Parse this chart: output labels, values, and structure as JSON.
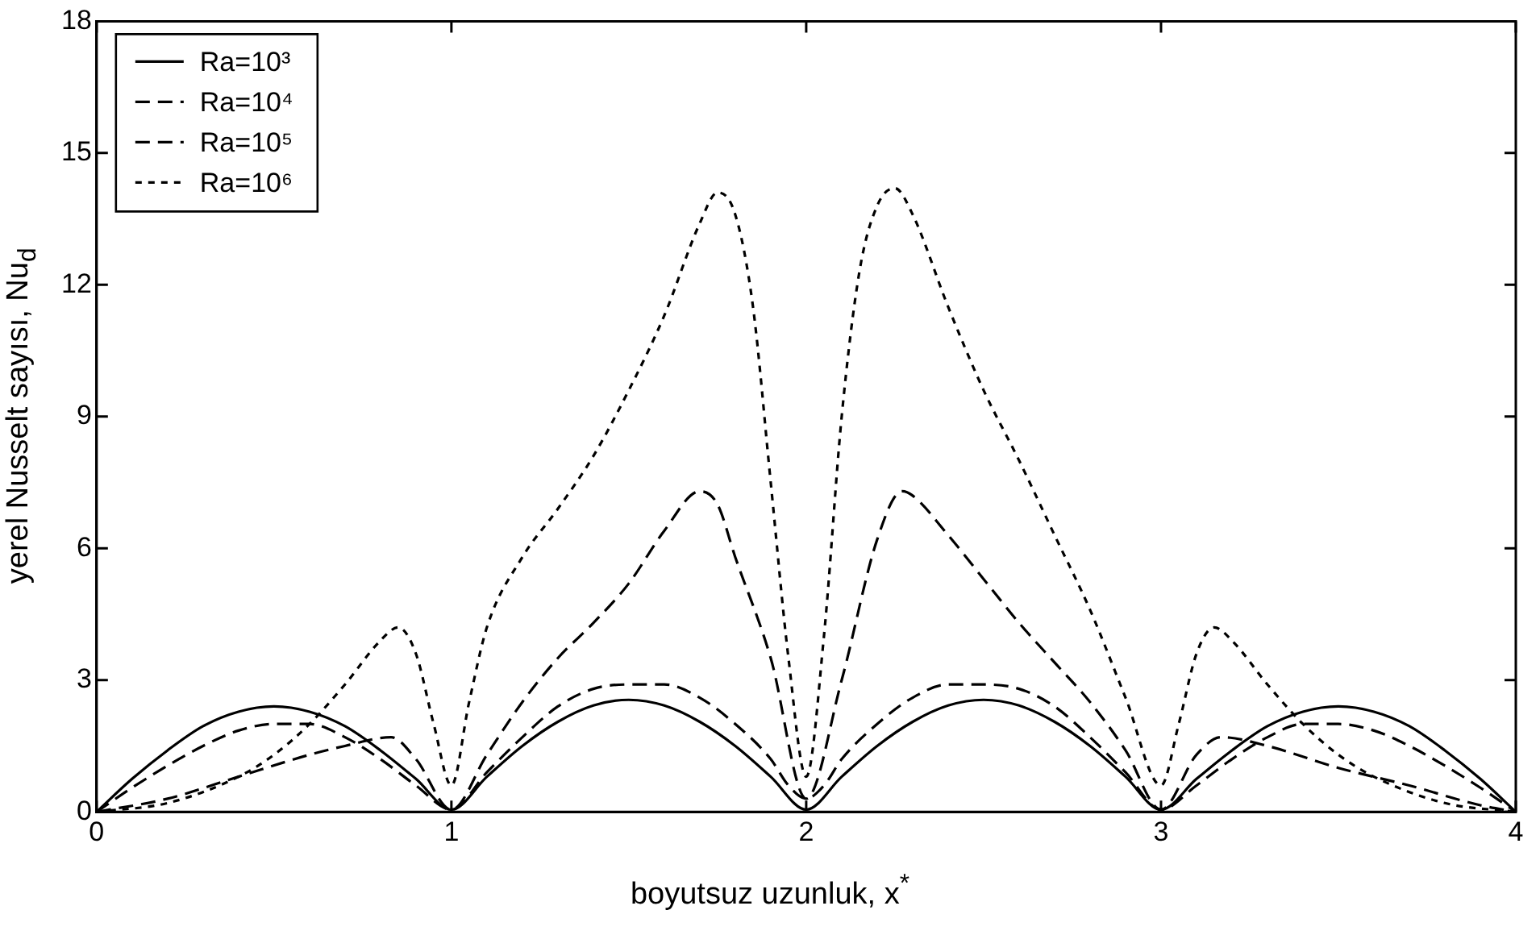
{
  "chart_data": {
    "type": "line",
    "xlabel": "boyutsuz uzunluk, x$^{*}$",
    "ylabel": "yerel Nusselt sayısı, Nu$_{d}$",
    "xlim": [
      0,
      4
    ],
    "xticks": [
      0,
      1,
      2,
      3,
      4
    ],
    "ylim": [
      0,
      18
    ],
    "yticks": [
      0,
      3,
      6,
      9,
      12,
      15,
      18
    ],
    "grid": false,
    "legend": "top left",
    "marker": "none",
    "series": [
      {
        "name": "Ra=10³",
        "color": "#000000",
        "line_style": "solid",
        "x": [
          0,
          0.1,
          0.2,
          0.3,
          0.4,
          0.5,
          0.6,
          0.7,
          0.8,
          0.9,
          1.0,
          1.1,
          1.2,
          1.3,
          1.4,
          1.5,
          1.6,
          1.7,
          1.8,
          1.9,
          2.0,
          2.1,
          2.2,
          2.3,
          2.4,
          2.5,
          2.6,
          2.7,
          2.8,
          2.9,
          3.0,
          3.1,
          3.2,
          3.3,
          3.4,
          3.5,
          3.6,
          3.7,
          3.8,
          3.9,
          4.0
        ],
        "values": [
          0,
          0.75,
          1.4,
          1.95,
          2.28,
          2.4,
          2.28,
          1.95,
          1.4,
          0.75,
          0.05,
          0.8,
          1.5,
          2.05,
          2.42,
          2.55,
          2.42,
          2.05,
          1.5,
          0.8,
          0.05,
          0.8,
          1.5,
          2.05,
          2.42,
          2.55,
          2.42,
          2.05,
          1.5,
          0.8,
          0.05,
          0.75,
          1.4,
          1.95,
          2.28,
          2.4,
          2.28,
          1.95,
          1.4,
          0.75,
          0
        ]
      },
      {
        "name": "Ra=10⁴",
        "color": "#000000",
        "line_style": "dashed",
        "x": [
          0,
          0.1,
          0.2,
          0.3,
          0.4,
          0.5,
          0.6,
          0.7,
          0.8,
          0.9,
          1.0,
          1.1,
          1.2,
          1.3,
          1.4,
          1.5,
          1.6,
          1.7,
          1.8,
          1.9,
          1.95,
          2.0,
          2.05,
          2.1,
          2.2,
          2.3,
          2.4,
          2.5,
          2.6,
          2.7,
          2.8,
          2.9,
          3.0,
          3.1,
          3.2,
          3.3,
          3.4,
          3.5,
          3.6,
          3.7,
          3.8,
          3.9,
          4.0
        ],
        "values": [
          0,
          0.55,
          1.05,
          1.5,
          1.85,
          2.0,
          2.0,
          1.7,
          1.2,
          0.6,
          0.05,
          0.9,
          1.7,
          2.4,
          2.8,
          2.9,
          2.9,
          2.6,
          2.0,
          1.2,
          0.6,
          0.3,
          0.6,
          1.2,
          2.0,
          2.6,
          2.9,
          2.9,
          2.8,
          2.4,
          1.7,
          0.9,
          0.05,
          0.6,
          1.2,
          1.7,
          2.0,
          2.0,
          1.85,
          1.5,
          1.05,
          0.55,
          0
        ]
      },
      {
        "name": "Ra=10⁵",
        "color": "#000000",
        "line_style": "dashed",
        "x": [
          0,
          0.2,
          0.4,
          0.6,
          0.7,
          0.83,
          0.9,
          1.0,
          1.1,
          1.2,
          1.3,
          1.4,
          1.5,
          1.6,
          1.7,
          1.75,
          1.8,
          1.9,
          2.0,
          2.1,
          2.2,
          2.27,
          2.3,
          2.4,
          2.5,
          2.6,
          2.7,
          2.8,
          2.9,
          3.0,
          3.1,
          3.17,
          3.3,
          3.5,
          3.7,
          3.9,
          4.0
        ],
        "values": [
          0,
          0.3,
          0.8,
          1.3,
          1.5,
          1.7,
          1.2,
          0.05,
          1.3,
          2.5,
          3.5,
          4.3,
          5.2,
          6.4,
          7.3,
          7.0,
          5.8,
          3.5,
          0.3,
          3.0,
          6.2,
          7.3,
          7.2,
          6.3,
          5.3,
          4.3,
          3.4,
          2.5,
          1.4,
          0.05,
          1.3,
          1.7,
          1.5,
          1.0,
          0.6,
          0.15,
          0
        ]
      },
      {
        "name": "Ra=10⁶",
        "color": "#000000",
        "line_style": "dotted",
        "x": [
          0,
          0.2,
          0.4,
          0.5,
          0.6,
          0.7,
          0.8,
          0.85,
          0.9,
          0.95,
          1.0,
          1.05,
          1.1,
          1.2,
          1.3,
          1.4,
          1.5,
          1.6,
          1.7,
          1.75,
          1.8,
          1.85,
          1.9,
          1.95,
          2.0,
          2.05,
          2.1,
          2.15,
          2.2,
          2.25,
          2.3,
          2.4,
          2.5,
          2.6,
          2.7,
          2.8,
          2.9,
          3.0,
          3.05,
          3.1,
          3.15,
          3.2,
          3.3,
          3.4,
          3.5,
          3.6,
          3.8,
          4.0
        ],
        "values": [
          0,
          0.2,
          0.8,
          1.3,
          2.0,
          2.9,
          3.9,
          4.2,
          3.6,
          2.0,
          0.6,
          2.5,
          4.2,
          5.8,
          6.9,
          8.1,
          9.6,
          11.3,
          13.4,
          14.1,
          13.6,
          11.5,
          7.5,
          3.5,
          0.8,
          4.0,
          9.0,
          12.3,
          13.8,
          14.2,
          13.6,
          11.5,
          9.6,
          8.0,
          6.3,
          4.6,
          2.6,
          0.6,
          2.0,
          3.6,
          4.2,
          3.9,
          2.9,
          2.0,
          1.3,
          0.8,
          0.2,
          0
        ]
      }
    ]
  }
}
